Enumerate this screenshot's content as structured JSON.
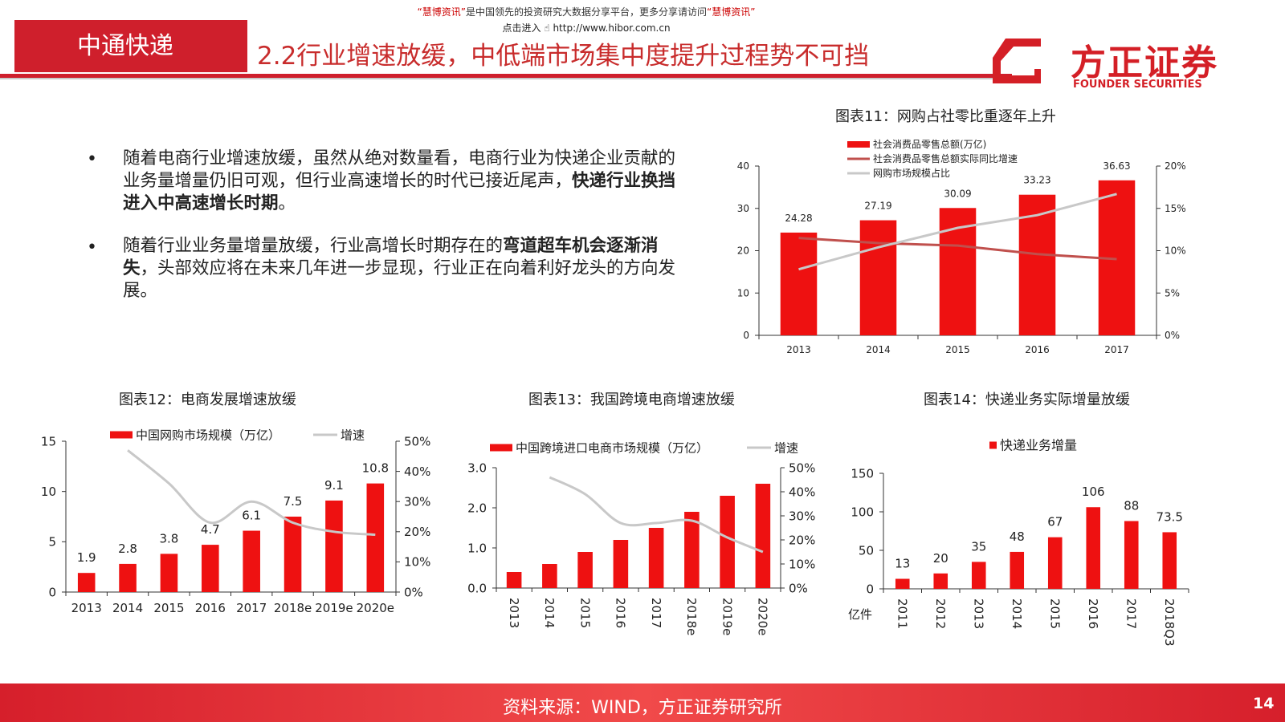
{
  "header": {
    "promo_quote1": "“慧博资讯”",
    "promo_mid": "是中国领先的投资研究大数据分享平台，更多分享请访问",
    "promo_quote2": "“慧博资讯”",
    "promo_line2_prefix": "点击进入",
    "promo_url": "http://www.hibor.com.cn",
    "section_label": "中通快递",
    "page_title": "2.2行业增速放缓，中低端市场集中度提升过程势不可挡",
    "logo_cn": "方正证券",
    "logo_en": "FOUNDER SECURITIES"
  },
  "bullets": [
    {
      "pre": "随着电商行业增速放缓，虽然从绝对数量看，电商行业为快递企业贡献的业务量增量仍旧可观，但行业高速增长的时代已接近尾声，",
      "bold": "快递行业换挡进入中高速增长时期",
      "post": "。"
    },
    {
      "pre": "随着行业业务量增量放缓，行业高增长时期存在的",
      "bold": "弯道超车机会逐渐消失",
      "post": "，头部效应将在未来几年进一步显现，行业正在向着利好龙头的方向发展。"
    }
  ],
  "footer": {
    "source": "资料来源：WIND，方正证券研究所",
    "page_number": "14"
  },
  "colors": {
    "bar": "#ee1111",
    "brand_red": "#cf1f2c",
    "dark_line": "#c0504d",
    "gray_line": "#c8c8c8"
  },
  "chart_data": [
    {
      "id": "chart11",
      "title": "图表11：网购占社零比重逐年上升",
      "type": "bar",
      "categories": [
        "2013",
        "2014",
        "2015",
        "2016",
        "2017"
      ],
      "series": [
        {
          "name": "社会消费品零售总额(万亿)",
          "kind": "bar",
          "axis": "left",
          "values": [
            24.28,
            27.19,
            30.09,
            33.23,
            36.63
          ],
          "labels": [
            "24.28",
            "27.19",
            "30.09",
            "33.23",
            "36.63"
          ]
        },
        {
          "name": "社会消费品零售总额实际同比增速",
          "kind": "line",
          "axis": "right",
          "color": "#c0504d",
          "values": [
            0.115,
            0.109,
            0.106,
            0.096,
            0.09
          ]
        },
        {
          "name": "网购市场规模占比",
          "kind": "line",
          "axis": "right",
          "color": "#c8c8c8",
          "values": [
            0.078,
            0.104,
            0.127,
            0.142,
            0.167
          ]
        }
      ],
      "ylim": [
        0,
        40
      ],
      "yticks": [
        "0",
        "10",
        "20",
        "30",
        "40"
      ],
      "y2lim": [
        0,
        0.2
      ],
      "y2ticks": [
        "0%",
        "5%",
        "10%",
        "15%",
        "20%"
      ],
      "legend": "top-left"
    },
    {
      "id": "chart12",
      "title": "图表12：电商发展增速放缓",
      "type": "bar",
      "categories": [
        "2013",
        "2014",
        "2015",
        "2016",
        "2017",
        "2018e",
        "2019e",
        "2020e"
      ],
      "series": [
        {
          "name": "中国网购市场规模（万亿）",
          "kind": "bar",
          "axis": "left",
          "values": [
            1.9,
            2.8,
            3.8,
            4.7,
            6.1,
            7.5,
            9.1,
            10.8
          ],
          "labels": [
            "1.9",
            "2.8",
            "3.8",
            "4.7",
            "6.1",
            "7.5",
            "9.1",
            "10.8"
          ]
        },
        {
          "name": "增速",
          "kind": "line",
          "axis": "right",
          "color": "#c8c8c8",
          "smooth": true,
          "values": [
            null,
            0.47,
            0.36,
            0.23,
            0.3,
            0.23,
            0.2,
            0.19
          ]
        }
      ],
      "ylim": [
        0,
        15
      ],
      "yticks": [
        "0",
        "5",
        "10",
        "15"
      ],
      "y2lim": [
        0,
        0.5
      ],
      "y2ticks": [
        "0%",
        "10%",
        "20%",
        "30%",
        "40%",
        "50%"
      ],
      "legend": "top"
    },
    {
      "id": "chart13",
      "title": "图表13：我国跨境电商增速放缓",
      "type": "bar",
      "categories": [
        "2013",
        "2014",
        "2015",
        "2016",
        "2017",
        "2018e",
        "2019e",
        "2020e"
      ],
      "series": [
        {
          "name": "中国跨境进口电商市场规模（万亿）",
          "kind": "bar",
          "axis": "left",
          "values": [
            0.4,
            0.6,
            0.9,
            1.2,
            1.5,
            1.9,
            2.3,
            2.6
          ]
        },
        {
          "name": "增速",
          "kind": "line",
          "axis": "right",
          "color": "#c8c8c8",
          "smooth": true,
          "values": [
            null,
            0.46,
            0.39,
            0.27,
            0.27,
            0.28,
            0.21,
            0.15
          ]
        }
      ],
      "ylim": [
        0,
        3
      ],
      "yticks": [
        "0.0",
        "1.0",
        "2.0",
        "3.0"
      ],
      "y2lim": [
        0,
        0.5
      ],
      "y2ticks": [
        "0%",
        "10%",
        "20%",
        "30%",
        "40%",
        "50%"
      ],
      "legend": "top",
      "rotated_x_labels": true
    },
    {
      "id": "chart14",
      "title": "图表14：快递业务实际增量放缓",
      "type": "bar",
      "categories": [
        "2011",
        "2012",
        "2013",
        "2014",
        "2015",
        "2016",
        "2017",
        "2018Q3"
      ],
      "series": [
        {
          "name": "快递业务增量",
          "kind": "bar",
          "axis": "left",
          "values": [
            13,
            20,
            35,
            48,
            67,
            106,
            88,
            73.5
          ],
          "labels": [
            "13",
            "20",
            "35",
            "48",
            "67",
            "106",
            "88",
            "73.5"
          ]
        }
      ],
      "ylim": [
        0,
        150
      ],
      "yticks": [
        "0",
        "50",
        "100",
        "150"
      ],
      "unit_label": "亿件",
      "legend": "top",
      "rotated_x_labels": true
    }
  ]
}
